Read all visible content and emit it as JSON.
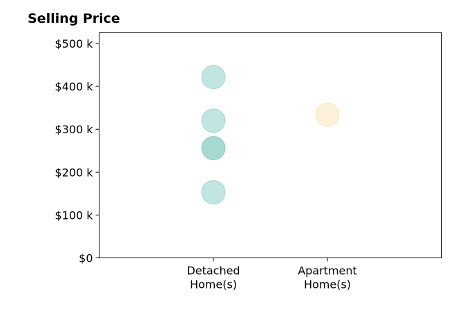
{
  "chart_data": {
    "type": "scatter",
    "title": "Selling Price",
    "xlabel": "",
    "ylabel": "",
    "categories": [
      [
        "Detached",
        "Home(s)"
      ],
      [
        "Apartment",
        "Home(s)"
      ]
    ],
    "ylim": [
      0,
      525000
    ],
    "yticks": [
      {
        "value": 0,
        "label": "$0"
      },
      {
        "value": 100000,
        "label": "$100 k"
      },
      {
        "value": 200000,
        "label": "$200 k"
      },
      {
        "value": 300000,
        "label": "$300 k"
      },
      {
        "value": 400000,
        "label": "$400 k"
      },
      {
        "value": 500000,
        "label": "$500 k"
      }
    ],
    "grid": false,
    "points": [
      {
        "category": 0,
        "y": 422000,
        "color": "#8ecfc7"
      },
      {
        "category": 0,
        "y": 320000,
        "color": "#8ecfc7"
      },
      {
        "category": 0,
        "y": 256000,
        "color": "#8ecfc7"
      },
      {
        "category": 0,
        "y": 256000,
        "color": "#8ecfc7"
      },
      {
        "category": 0,
        "y": 153000,
        "color": "#8ecfc7"
      },
      {
        "category": 1,
        "y": 334000,
        "color": "#f7e3b8"
      }
    ]
  }
}
